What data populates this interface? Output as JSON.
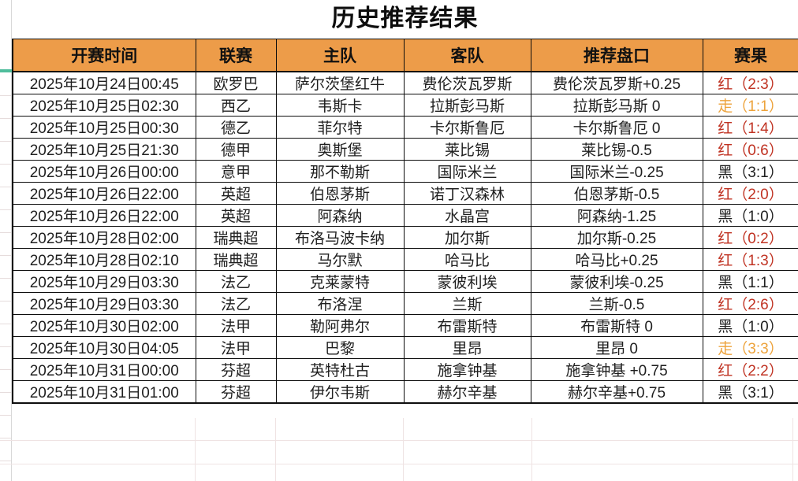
{
  "title": "历史推荐结果",
  "colors": {
    "header_bg": "#ED9C49",
    "red": "#C03323",
    "draw": "#EDA33C",
    "black": "#1F1F1F",
    "freeze_indicator_green": "#4FBD9C"
  },
  "table": {
    "headers": [
      "开赛时间",
      "联赛",
      "主队",
      "客队",
      "推荐盘口",
      "赛果"
    ],
    "rows": [
      {
        "time": "2025年10月24日00:45",
        "league": "欧罗巴",
        "home": "萨尔茨堡红牛",
        "away": "费伦茨瓦罗斯",
        "handicap": "费伦茨瓦罗斯+0.25",
        "result": "红（2:3）",
        "status": "red"
      },
      {
        "time": "2025年10月25日02:30",
        "league": "西乙",
        "home": "韦斯卡",
        "away": "拉斯彭马斯",
        "handicap": "拉斯彭马斯 0",
        "result": "走（1:1）",
        "status": "draw"
      },
      {
        "time": "2025年10月25日00:30",
        "league": "德乙",
        "home": "菲尔特",
        "away": "卡尔斯鲁厄",
        "handicap": "卡尔斯鲁厄 0",
        "result": "红（1:4）",
        "status": "red"
      },
      {
        "time": "2025年10月25日21:30",
        "league": "德甲",
        "home": "奥斯堡",
        "away": "莱比锡",
        "handicap": "莱比锡-0.5",
        "result": "红（0:6）",
        "status": "red"
      },
      {
        "time": "2025年10月26日00:00",
        "league": "意甲",
        "home": "那不勒斯",
        "away": "国际米兰",
        "handicap": "国际米兰-0.25",
        "result": "黑（3:1）",
        "status": "black"
      },
      {
        "time": "2025年10月26日22:00",
        "league": "英超",
        "home": "伯恩茅斯",
        "away": "诺丁汉森林",
        "handicap": "伯恩茅斯-0.5",
        "result": "红（2:0）",
        "status": "red"
      },
      {
        "time": "2025年10月26日22:00",
        "league": "英超",
        "home": "阿森纳",
        "away": "水晶宫",
        "handicap": "阿森纳-1.25",
        "result": "黑（1:0）",
        "status": "black"
      },
      {
        "time": "2025年10月28日02:00",
        "league": "瑞典超",
        "home": "布洛马波卡纳",
        "away": "加尔斯",
        "handicap": "加尔斯-0.25",
        "result": "红（0:2）",
        "status": "red"
      },
      {
        "time": "2025年10月28日02:10",
        "league": "瑞典超",
        "home": "马尔默",
        "away": "哈马比",
        "handicap": "哈马比+0.25",
        "result": "红（1:3）",
        "status": "red"
      },
      {
        "time": "2025年10月29日03:30",
        "league": "法乙",
        "home": "克莱蒙特",
        "away": "蒙彼利埃",
        "handicap": "蒙彼利埃-0.25",
        "result": "黑（1:1）",
        "status": "black"
      },
      {
        "time": "2025年10月29日03:30",
        "league": "法乙",
        "home": "布洛涅",
        "away": "兰斯",
        "handicap": "兰斯-0.5",
        "result": "红（2:6）",
        "status": "red"
      },
      {
        "time": "2025年10月30日02:00",
        "league": "法甲",
        "home": "勒阿弗尔",
        "away": "布雷斯特",
        "handicap": "布雷斯特 0",
        "result": "黑（1:0）",
        "status": "black"
      },
      {
        "time": "2025年10月30日04:05",
        "league": "法甲",
        "home": "巴黎",
        "away": "里昂",
        "handicap": "里昂 0",
        "result": "走（3:3）",
        "status": "draw"
      },
      {
        "time": "2025年10月31日00:00",
        "league": "芬超",
        "home": "英特杜古",
        "away": "施拿钟基",
        "handicap": "施拿钟基 +0.75",
        "result": "红（2:2）",
        "status": "red"
      },
      {
        "time": "2025年10月31日01:00",
        "league": "芬超",
        "home": "伊尔韦斯",
        "away": "赫尔辛基",
        "handicap": "赫尔辛基+0.75",
        "result": "黑（3:1）",
        "status": "black"
      }
    ]
  }
}
